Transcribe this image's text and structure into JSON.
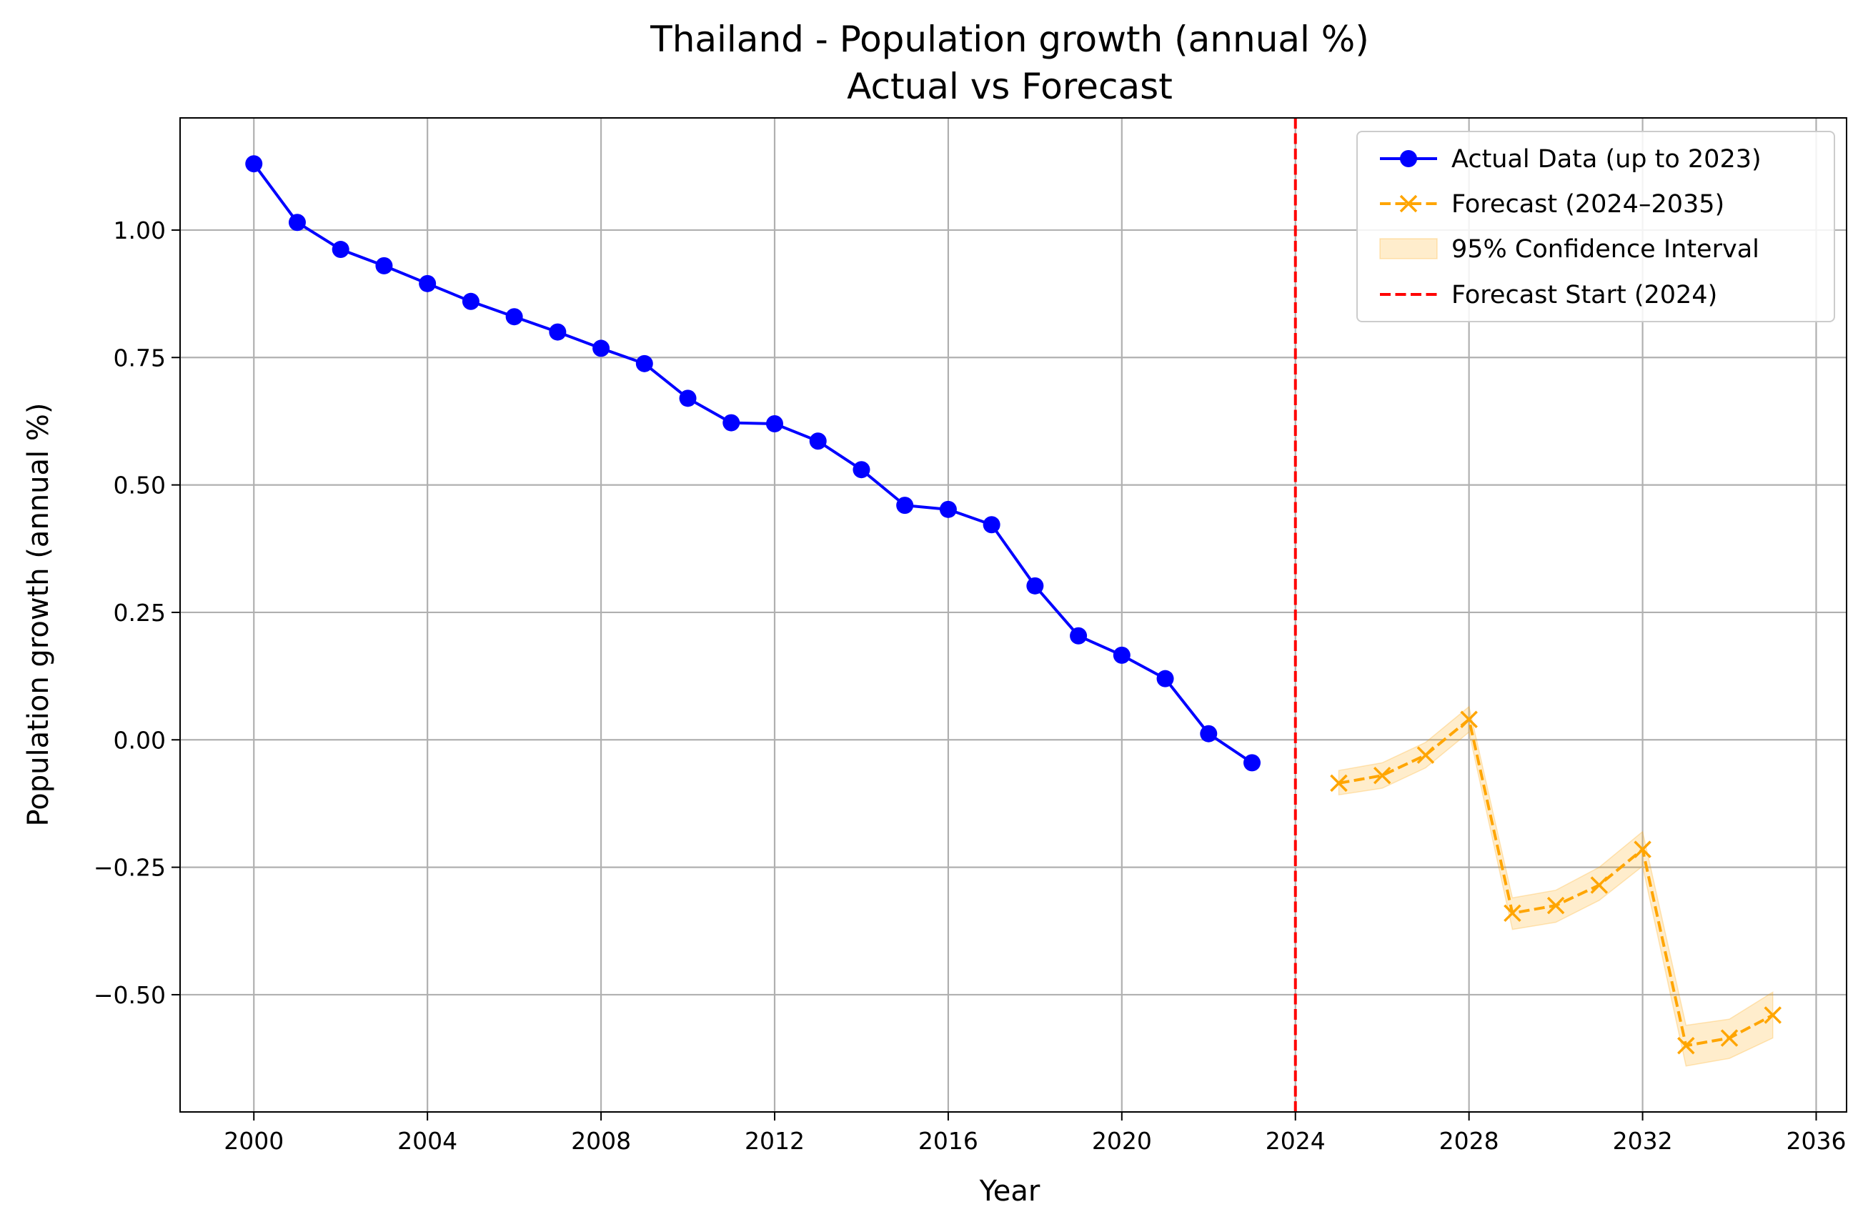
{
  "chart_data": {
    "type": "line",
    "title_line1": "Thailand - Population growth (annual %)",
    "title_line2": "Actual vs Forecast",
    "xlabel": "Year",
    "ylabel": "Population growth (annual %)",
    "xlim": [
      1998.3,
      2036.7
    ],
    "ylim": [
      -0.73,
      1.22
    ],
    "grid": true,
    "legend_position": "top-right",
    "x_ticks": [
      2000,
      2004,
      2008,
      2012,
      2016,
      2020,
      2024,
      2028,
      2032,
      2036
    ],
    "x_tick_labels": [
      "2000",
      "2004",
      "2008",
      "2012",
      "2016",
      "2020",
      "2024",
      "2028",
      "2032",
      "2036"
    ],
    "y_ticks": [
      1.0,
      0.75,
      0.5,
      0.25,
      0.0,
      -0.25,
      -0.5
    ],
    "y_tick_labels": [
      "1.00",
      "0.75",
      "0.50",
      "0.25",
      "0.00",
      "−0.25",
      "−0.50"
    ],
    "series": [
      {
        "name": "Actual Data (up to 2023)",
        "color": "#0000ff",
        "marker": "circle",
        "linestyle": "solid",
        "x": [
          2000,
          2001,
          2002,
          2003,
          2004,
          2005,
          2006,
          2007,
          2008,
          2009,
          2010,
          2011,
          2012,
          2013,
          2014,
          2015,
          2016,
          2017,
          2018,
          2019,
          2020,
          2021,
          2022,
          2023
        ],
        "y": [
          1.13,
          1.015,
          0.962,
          0.93,
          0.895,
          0.86,
          0.83,
          0.8,
          0.768,
          0.738,
          0.67,
          0.622,
          0.62,
          0.586,
          0.53,
          0.46,
          0.452,
          0.422,
          0.302,
          0.204,
          0.166,
          0.12,
          0.012,
          -0.045
        ]
      },
      {
        "name": "Forecast (2024–2035)",
        "color": "#ffa500",
        "marker": "x",
        "linestyle": "dashed",
        "x": [
          2025,
          2026,
          2027,
          2028,
          2029,
          2030,
          2031,
          2032,
          2033,
          2034,
          2035
        ],
        "y": [
          -0.085,
          -0.07,
          -0.03,
          0.04,
          -0.34,
          -0.325,
          -0.285,
          -0.215,
          -0.6,
          -0.585,
          -0.54
        ]
      }
    ],
    "confidence_interval": {
      "name": "95% Confidence Interval",
      "color": "#ffa500",
      "x": [
        2025,
        2026,
        2027,
        2028,
        2029,
        2030,
        2031,
        2032,
        2033,
        2034,
        2035
      ],
      "lower": [
        -0.108,
        -0.095,
        -0.055,
        0.015,
        -0.372,
        -0.358,
        -0.315,
        -0.248,
        -0.64,
        -0.625,
        -0.585
      ],
      "upper": [
        -0.06,
        -0.045,
        -0.005,
        0.065,
        -0.31,
        -0.295,
        -0.25,
        -0.18,
        -0.56,
        -0.548,
        -0.495
      ]
    },
    "forecast_start": {
      "name": "Forecast Start (2024)",
      "x": 2024,
      "color": "#ff0000",
      "linestyle": "dashed"
    }
  }
}
